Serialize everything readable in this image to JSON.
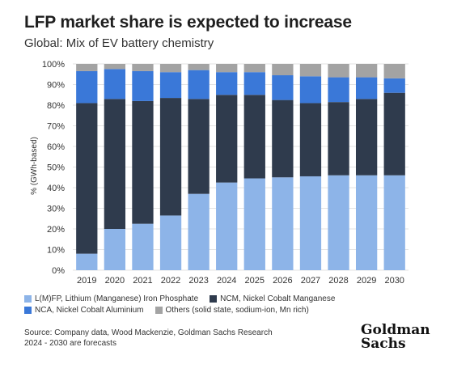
{
  "header": {
    "title": "LFP market share is expected to increase",
    "subtitle": "Global: Mix of EV battery chemistry"
  },
  "chart_data": {
    "type": "bar",
    "stacked": true,
    "title": "LFP market share is expected to increase",
    "subtitle": "Global: Mix of EV battery chemistry",
    "ylabel": "% (GWh-based)",
    "xlabel": "",
    "ylim": [
      0,
      100
    ],
    "yticks": [
      "0%",
      "10%",
      "20%",
      "30%",
      "40%",
      "50%",
      "60%",
      "70%",
      "80%",
      "90%",
      "100%"
    ],
    "grid": true,
    "legend_position": "bottom",
    "categories": [
      "2019",
      "2020",
      "2021",
      "2022",
      "2023",
      "2024",
      "2025",
      "2026",
      "2027",
      "2028",
      "2029",
      "2030"
    ],
    "series": [
      {
        "name": "L(M)FP, Lithium (Manganese) Iron Phosphate",
        "color": "#8db4e8",
        "values": [
          8,
          20,
          22.5,
          26.5,
          37,
          42.5,
          44.5,
          45,
          45.5,
          46,
          46,
          46
        ]
      },
      {
        "name": "NCM, Nickel Cobalt Manganese",
        "color": "#2f3b4d",
        "values": [
          73,
          63,
          59.5,
          57,
          46,
          42.5,
          40.5,
          37.5,
          35.5,
          35.5,
          37,
          40
        ]
      },
      {
        "name": "NCA, Nickel Cobalt Aluminium",
        "color": "#3a78d8",
        "values": [
          15.5,
          14.5,
          14.5,
          12.5,
          14,
          11,
          11,
          12,
          13,
          12,
          10.5,
          7
        ]
      },
      {
        "name": "Others (solid state, sodium-ion, Mn rich)",
        "color": "#a3a3a3",
        "values": [
          3.5,
          2.5,
          3.5,
          4,
          3,
          4,
          4,
          5.5,
          6,
          6.5,
          6.5,
          7
        ]
      }
    ]
  },
  "legend": {
    "items": [
      {
        "label": "L(M)FP, Lithium (Manganese) Iron Phosphate",
        "color": "#8db4e8"
      },
      {
        "label": "NCM, Nickel Cobalt Manganese",
        "color": "#2f3b4d"
      },
      {
        "label": "NCA, Nickel Cobalt Aluminium",
        "color": "#3a78d8"
      },
      {
        "label": "Others (solid state, sodium-ion, Mn rich)",
        "color": "#a3a3a3"
      }
    ]
  },
  "footer": {
    "source": "Source: Company data, Wood Mackenzie, Goldman Sachs Research",
    "note": "2024 - 2030 are forecasts"
  },
  "logo": {
    "line1": "Goldman",
    "line2": "Sachs"
  }
}
